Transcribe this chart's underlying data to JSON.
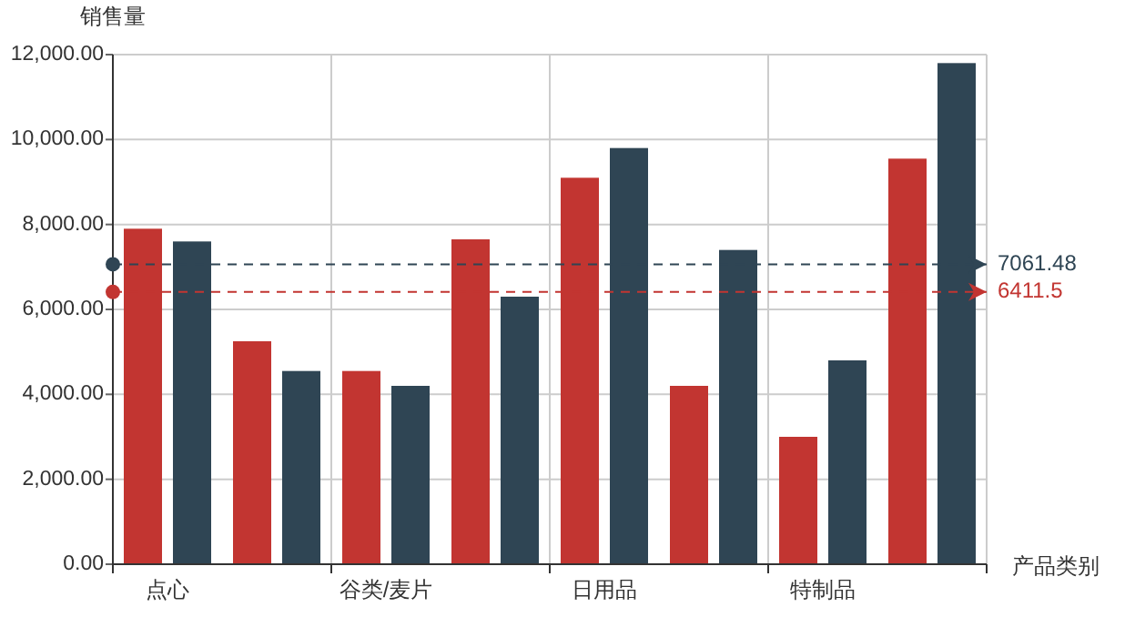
{
  "chart_data": {
    "type": "bar",
    "ylabel": "销售量",
    "xlabel": "产品类别",
    "categories": [
      "点心",
      null,
      "谷类/麦片",
      null,
      "日用品",
      null,
      "特制品",
      null
    ],
    "series": [
      {
        "color": "#c23531",
        "values": [
          7900,
          5250,
          4550,
          7650,
          9100,
          4200,
          3000,
          9550
        ]
      },
      {
        "color": "#2f4554",
        "values": [
          7600,
          4550,
          4200,
          6300,
          9800,
          7400,
          4800,
          11800
        ]
      }
    ],
    "ylim": [
      0,
      12000
    ],
    "yticks": [
      {
        "value": 0,
        "label": "0.00"
      },
      {
        "value": 2000,
        "label": "2,000.00"
      },
      {
        "value": 4000,
        "label": "4,000.00"
      },
      {
        "value": 6000,
        "label": "6,000.00"
      },
      {
        "value": 8000,
        "label": "8,000.00"
      },
      {
        "value": 10000,
        "label": "10,000.00"
      },
      {
        "value": 12000,
        "label": "12,000.00"
      }
    ],
    "ref_lines": [
      {
        "axis": "y",
        "value": 7061.48,
        "label": "7061.48",
        "color": "#2f4554",
        "line_style": "dashed"
      },
      {
        "axis": "y",
        "value": 6411.5,
        "label": "6411.5",
        "color": "#c23531",
        "line_style": "dashed"
      }
    ],
    "grid": true
  }
}
